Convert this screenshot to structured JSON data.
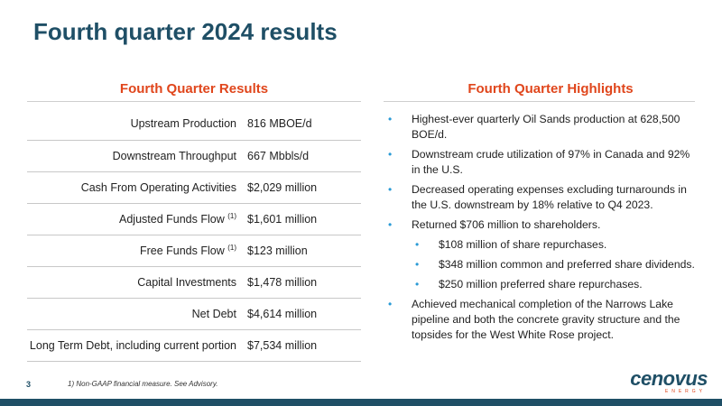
{
  "page": {
    "title": "Fourth quarter 2024 results",
    "page_number": "3",
    "footnote": "1) Non-GAAP financial measure. See Advisory."
  },
  "results": {
    "title": "Fourth Quarter Results",
    "rows": [
      {
        "metric": "Upstream Production",
        "note": "",
        "value": "816 MBOE/d"
      },
      {
        "metric": "Downstream Throughput",
        "note": "",
        "value": "667 Mbbls/d"
      },
      {
        "metric": "Cash From Operating Activities",
        "note": "",
        "value": "$2,029 million"
      },
      {
        "metric": "Adjusted Funds Flow",
        "note": "(1)",
        "value": "$1,601 million"
      },
      {
        "metric": "Free Funds Flow",
        "note": "(1)",
        "value": "$123 million"
      },
      {
        "metric": "Capital Investments",
        "note": "",
        "value": "$1,478 million"
      },
      {
        "metric": "Net Debt",
        "note": "",
        "value": "$4,614 million"
      },
      {
        "metric": "Long Term Debt, including current portion",
        "note": "",
        "value": "$7,534 million"
      }
    ]
  },
  "highlights": {
    "title": "Fourth Quarter Highlights",
    "items": [
      {
        "text": "Highest-ever quarterly Oil Sands production at 628,500 BOE/d.",
        "level": 1
      },
      {
        "text": "Downstream crude utilization of 97% in Canada and 92% in the U.S.",
        "level": 1
      },
      {
        "text": "Decreased operating expenses excluding turnarounds in the U.S. downstream by 18% relative to Q4 2023.",
        "level": 1
      },
      {
        "text": "Returned $706 million to shareholders.",
        "level": 1
      },
      {
        "text": "$108 million of share repurchases.",
        "level": 2
      },
      {
        "text": "$348 million common and preferred share dividends.",
        "level": 2
      },
      {
        "text": "$250 million preferred share repurchases.",
        "level": 2
      },
      {
        "text": "Achieved mechanical completion of the Narrows Lake pipeline and both the concrete gravity structure and the topsides for the West White Rose project.",
        "level": 1
      }
    ]
  },
  "logo": {
    "word": "cenovus",
    "sub": "ENERGY"
  },
  "colors": {
    "title": "#1f4f66",
    "accent": "#e0461c",
    "bullet": "#2b9bd6"
  }
}
